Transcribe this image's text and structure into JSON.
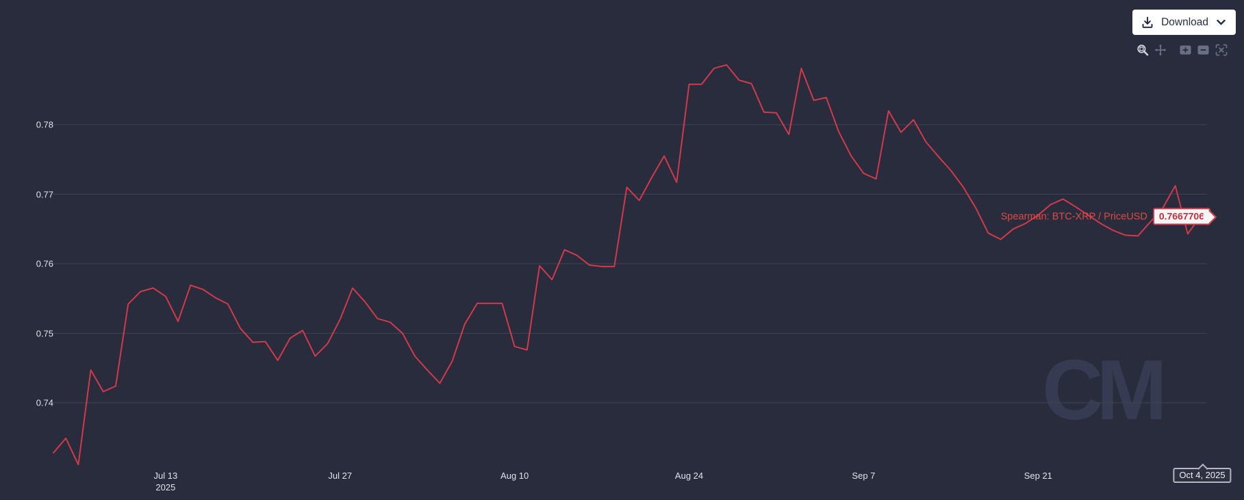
{
  "header": {
    "download_label": "Download"
  },
  "toolbar": {
    "tools": [
      "box-zoom",
      "pan",
      "zoom-in",
      "zoom-out",
      "reset-axes"
    ],
    "active_tool": "box-zoom"
  },
  "chart_data": {
    "type": "line",
    "title": "",
    "xlabel": "",
    "ylabel": "",
    "grid": true,
    "legend_position": "series-end-label-right",
    "x_start_date": "2025-07-04",
    "x_end_date": "2025-10-04",
    "frequency": "daily",
    "ylim": [
      0.729,
      0.792
    ],
    "yticks": [
      0.78,
      0.77,
      0.76,
      0.75,
      0.74
    ],
    "xticks": [
      {
        "label": "Jul 13",
        "sublabel": "2025",
        "index": 9
      },
      {
        "label": "Jul 27",
        "index": 23
      },
      {
        "label": "Aug 10",
        "index": 37
      },
      {
        "label": "Aug 24",
        "index": 51
      },
      {
        "label": "Sep 7",
        "index": 65
      },
      {
        "label": "Sep 21",
        "index": 79
      }
    ],
    "series": [
      {
        "name": "Spearman: BTC-XRP / PriceUSD",
        "color": "#d13a4a",
        "last_value_label": "0.7667706",
        "values": [
          0.7328,
          0.7349,
          0.7311,
          0.7447,
          0.7416,
          0.7424,
          0.7542,
          0.756,
          0.7565,
          0.7553,
          0.7517,
          0.7569,
          0.7563,
          0.7551,
          0.7542,
          0.7507,
          0.7487,
          0.7488,
          0.7461,
          0.7493,
          0.7504,
          0.7467,
          0.7485,
          0.752,
          0.7565,
          0.7545,
          0.7521,
          0.7516,
          0.75,
          0.7467,
          0.7447,
          0.7428,
          0.746,
          0.7513,
          0.7543,
          0.7543,
          0.7543,
          0.7481,
          0.7476,
          0.7597,
          0.7577,
          0.762,
          0.7612,
          0.7598,
          0.7596,
          0.7596,
          0.771,
          0.7691,
          0.7724,
          0.7755,
          0.7717,
          0.7858,
          0.7858,
          0.7881,
          0.7886,
          0.7864,
          0.7859,
          0.7818,
          0.7817,
          0.7786,
          0.7881,
          0.7835,
          0.7839,
          0.779,
          0.7755,
          0.773,
          0.7722,
          0.782,
          0.7789,
          0.7807,
          0.7775,
          0.7754,
          0.7734,
          0.771,
          0.768,
          0.7644,
          0.7635,
          0.765,
          0.7658,
          0.767,
          0.7685,
          0.7693,
          0.7682,
          0.767,
          0.7658,
          0.7648,
          0.7641,
          0.764,
          0.766,
          0.768,
          0.7712,
          0.7643,
          0.7667706
        ]
      }
    ]
  },
  "tooltip": {
    "date_label": "Oct 4, 2025"
  },
  "watermark": {
    "text": "CM"
  },
  "colors": {
    "background": "#282c3c",
    "gridline": "#3e4456",
    "tick_text": "#e2e4ea",
    "line_red": "#d13a4a",
    "label_red": "#de4a45",
    "badge_bg": "#f5f5f6",
    "badge_text": "#c42f3e",
    "tooltip_bg": "#2d3140",
    "tooltip_border": "#b3b8c2",
    "button_bg": "#ffffff",
    "button_text": "#252e49",
    "toolbar_icon": "#6a7083",
    "toolbar_icon_active": "#d2d5dd",
    "watermark": "#363b52"
  }
}
